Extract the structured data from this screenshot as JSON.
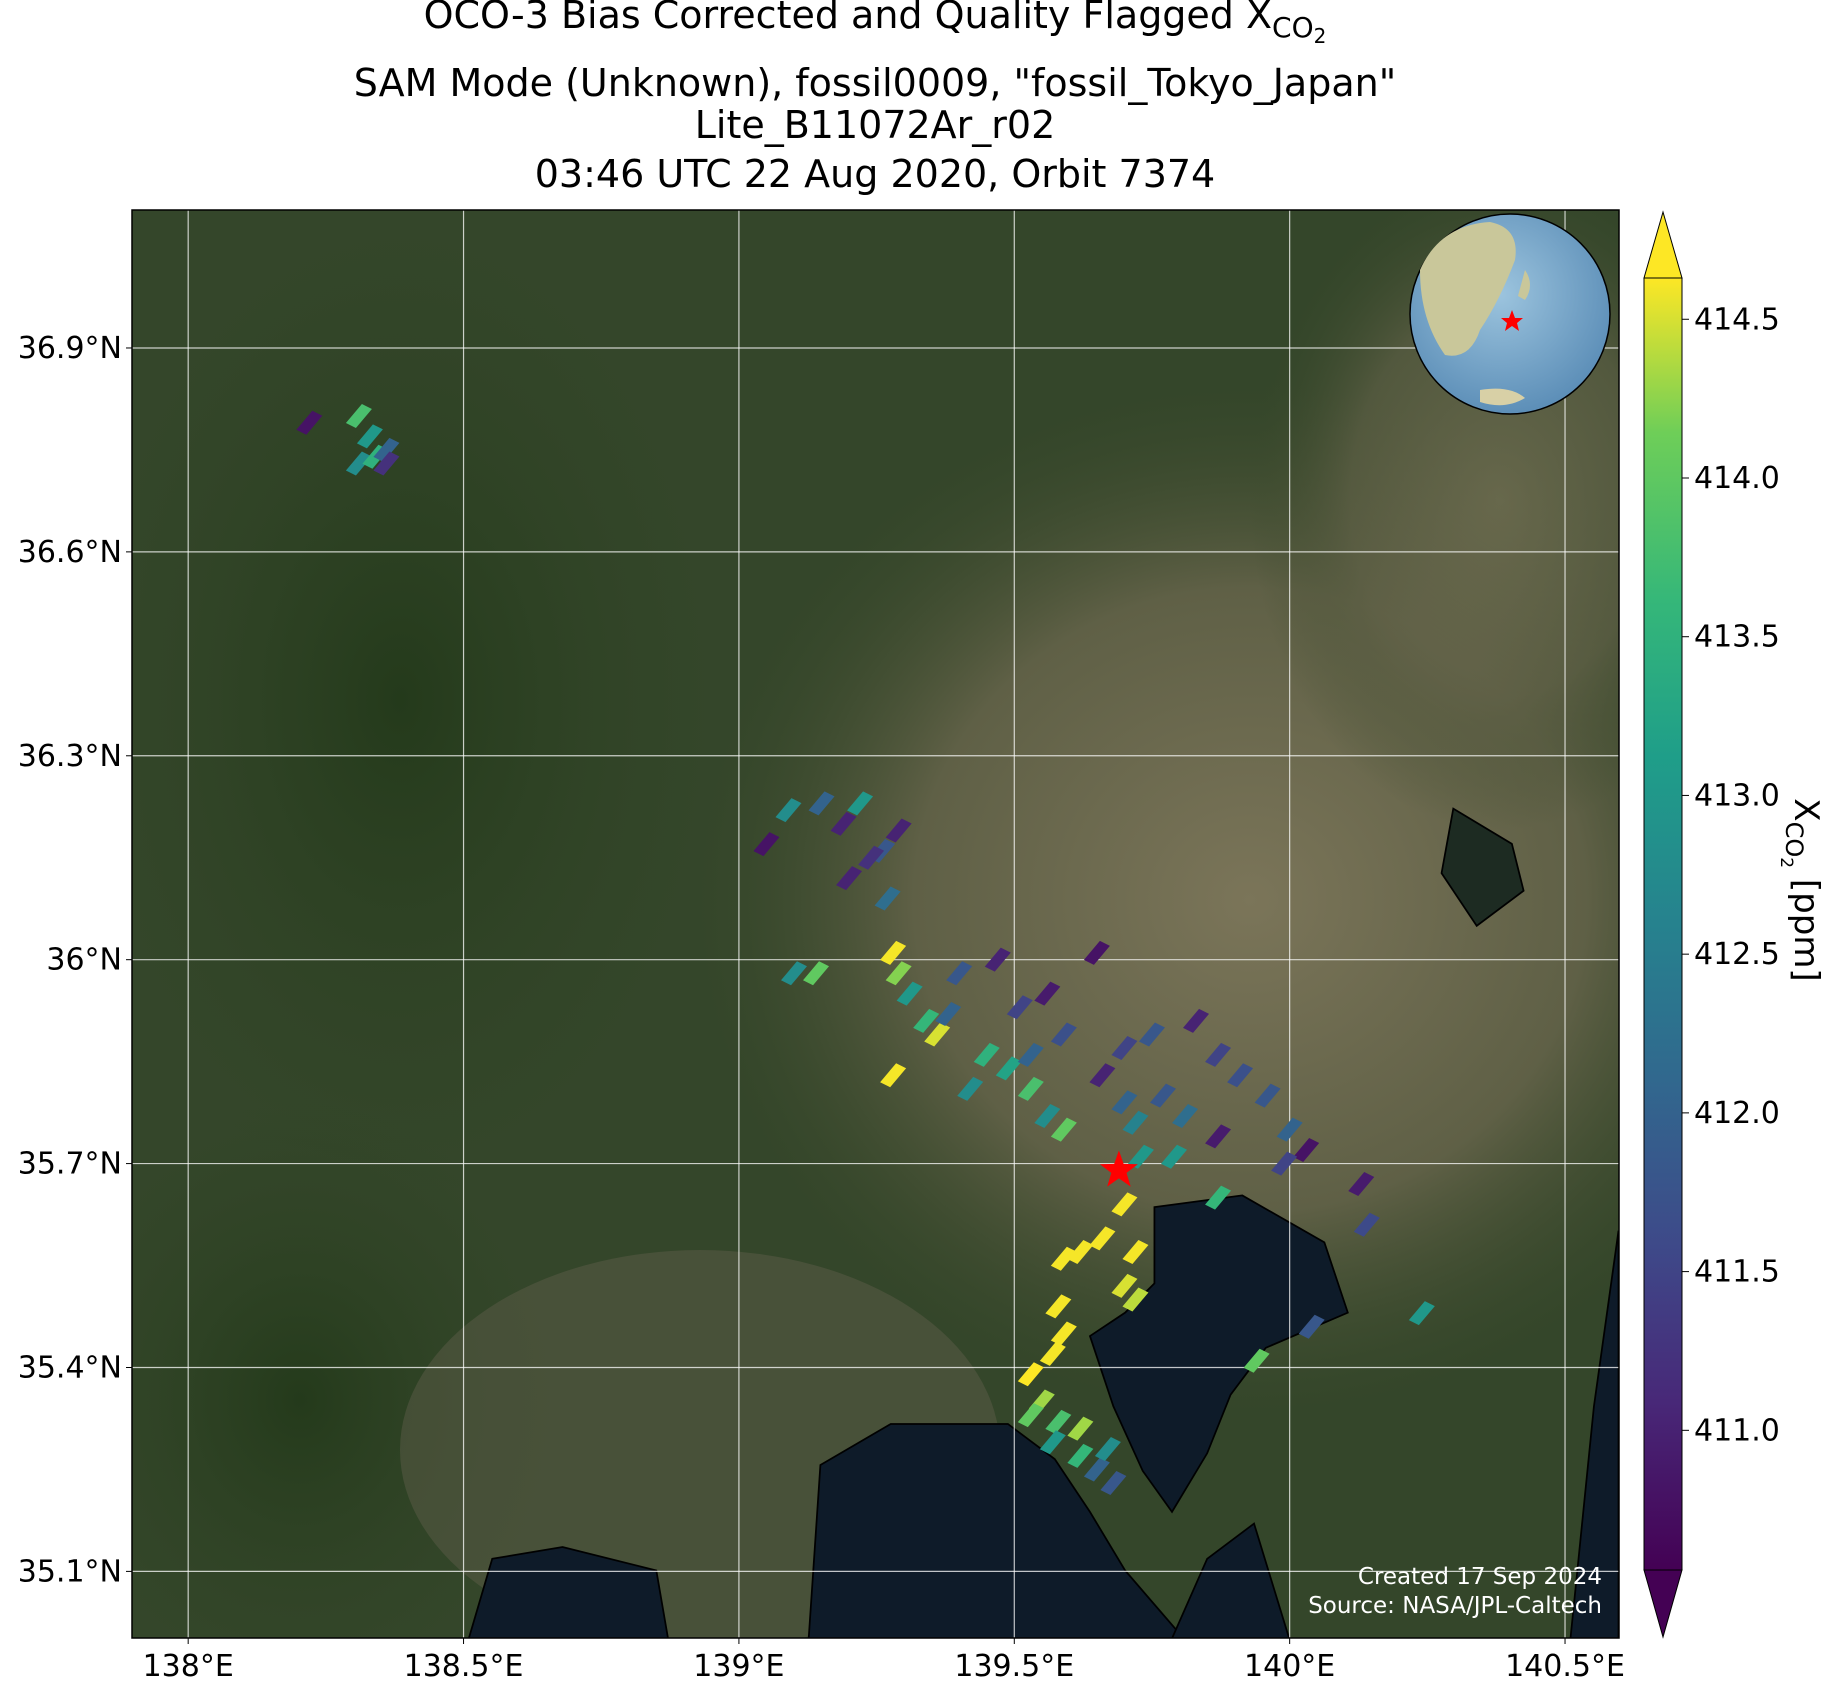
{
  "chart_data": {
    "type": "scatter",
    "title": [
      "OCO-3 Bias Corrected and Quality Flagged X",
      "CO",
      "2"
    ],
    "subtitle": [
      "SAM Mode (Unknown), fossil0009, \"fossil_Tokyo_Japan\"",
      "Lite_B11072Ar_r02",
      "03:46 UTC 22 Aug 2020, Orbit 7374"
    ],
    "xlim": [
      137.898,
      140.598
    ],
    "ylim": [
      35.002,
      37.103
    ],
    "xticks": [
      {
        "value": 138,
        "label": "138°E"
      },
      {
        "value": 138.5,
        "label": "138.5°E"
      },
      {
        "value": 139,
        "label": "139°E"
      },
      {
        "value": 139.5,
        "label": "139.5°E"
      },
      {
        "value": 140,
        "label": "140°E"
      },
      {
        "value": 140.5,
        "label": "140.5°E"
      }
    ],
    "yticks": [
      {
        "value": 35.1,
        "label": "35.1°N"
      },
      {
        "value": 35.4,
        "label": "35.4°N"
      },
      {
        "value": 35.7,
        "label": "35.7°N"
      },
      {
        "value": 36,
        "label": "36°N"
      },
      {
        "value": 36.3,
        "label": "36.3°N"
      },
      {
        "value": 36.6,
        "label": "36.6°N"
      },
      {
        "value": 36.9,
        "label": "36.9°N"
      }
    ],
    "grid": true,
    "colormap": "viridis",
    "clim": [
      410.56,
      414.63
    ],
    "cticks": [
      {
        "value": 411,
        "label": "411.0"
      },
      411.5,
      {
        "value": 412,
        "label": "412.0"
      },
      412.5,
      {
        "value": 413,
        "label": "413.0"
      },
      413.5,
      {
        "value": 414,
        "label": "414.0"
      },
      414.5
    ],
    "colorbar_label": [
      "X",
      "CO",
      "2",
      " [ppm]"
    ],
    "marker": {
      "x": 139.69,
      "y": 35.69,
      "color": "#ff0000"
    },
    "x": [
      138.22,
      138.31,
      138.33,
      138.31,
      138.34,
      138.36,
      138.36,
      139.09,
      139.05,
      139.15,
      139.22,
      139.19,
      139.26,
      139.29,
      139.24,
      139.2,
      139.1,
      139.14,
      139.27,
      139.28,
      139.29,
      139.31,
      139.34,
      139.36,
      139.28,
      139.38,
      139.4,
      139.47,
      139.51,
      139.56,
      139.65,
      139.42,
      139.45,
      139.49,
      139.53,
      139.56,
      139.59,
      139.53,
      139.59,
      139.66,
      139.7,
      139.7,
      139.72,
      139.73,
      139.77,
      139.81,
      139.75,
      139.83,
      139.87,
      139.91,
      139.79,
      139.87,
      139.96,
      140.0,
      140.03,
      139.99,
      140.13,
      140.14,
      139.87,
      139.7,
      139.66,
      139.62,
      139.72,
      139.7,
      139.72,
      139.59,
      139.58,
      139.59,
      139.57,
      139.53,
      139.55,
      139.53,
      139.58,
      139.57,
      139.62,
      139.62,
      139.65,
      139.68,
      139.67,
      140.24,
      139.94,
      140.04
    ],
    "y": [
      36.79,
      36.8,
      36.77,
      36.73,
      36.74,
      36.75,
      36.73,
      36.22,
      36.17,
      36.23,
      36.23,
      36.2,
      36.16,
      36.19,
      36.15,
      36.12,
      35.98,
      35.98,
      36.09,
      36.01,
      35.98,
      35.95,
      35.91,
      35.89,
      35.83,
      35.92,
      35.98,
      36.0,
      35.93,
      35.95,
      36.01,
      35.81,
      35.86,
      35.84,
      35.81,
      35.77,
      35.75,
      35.86,
      35.89,
      35.83,
      35.87,
      35.79,
      35.76,
      35.71,
      35.8,
      35.77,
      35.89,
      35.91,
      35.86,
      35.83,
      35.71,
      35.74,
      35.8,
      35.75,
      35.72,
      35.7,
      35.67,
      35.61,
      35.65,
      35.64,
      35.59,
      35.57,
      35.57,
      35.52,
      35.5,
      35.56,
      35.49,
      35.45,
      35.42,
      35.39,
      35.35,
      35.33,
      35.32,
      35.29,
      35.31,
      35.27,
      35.25,
      35.23,
      35.28,
      35.48,
      35.41,
      35.46
    ],
    "values": [
      410.8,
      413.8,
      413.0,
      412.8,
      413.5,
      412.0,
      411.2,
      412.8,
      410.8,
      412.0,
      413.0,
      411.0,
      411.8,
      411.0,
      411.2,
      411.0,
      412.8,
      414.0,
      412.2,
      414.6,
      414.2,
      413.0,
      413.6,
      414.5,
      414.6,
      412.0,
      411.8,
      411.0,
      411.5,
      410.9,
      410.8,
      412.8,
      413.5,
      413.2,
      413.8,
      412.8,
      414.0,
      412.0,
      411.7,
      411.0,
      411.5,
      412.0,
      412.6,
      413.0,
      411.8,
      412.2,
      411.8,
      411.0,
      411.5,
      411.7,
      413.0,
      410.9,
      411.8,
      412.0,
      410.8,
      411.5,
      410.9,
      411.6,
      413.6,
      414.6,
      414.6,
      414.6,
      414.6,
      414.5,
      414.4,
      414.6,
      414.6,
      414.6,
      414.6,
      414.7,
      414.3,
      414.0,
      413.8,
      413.0,
      414.3,
      413.6,
      412.0,
      411.8,
      412.8,
      413.0,
      414.0,
      411.8
    ],
    "notes": [
      "Created 17 Sep 2024",
      "Source: NASA/JPL-Caltech"
    ]
  }
}
